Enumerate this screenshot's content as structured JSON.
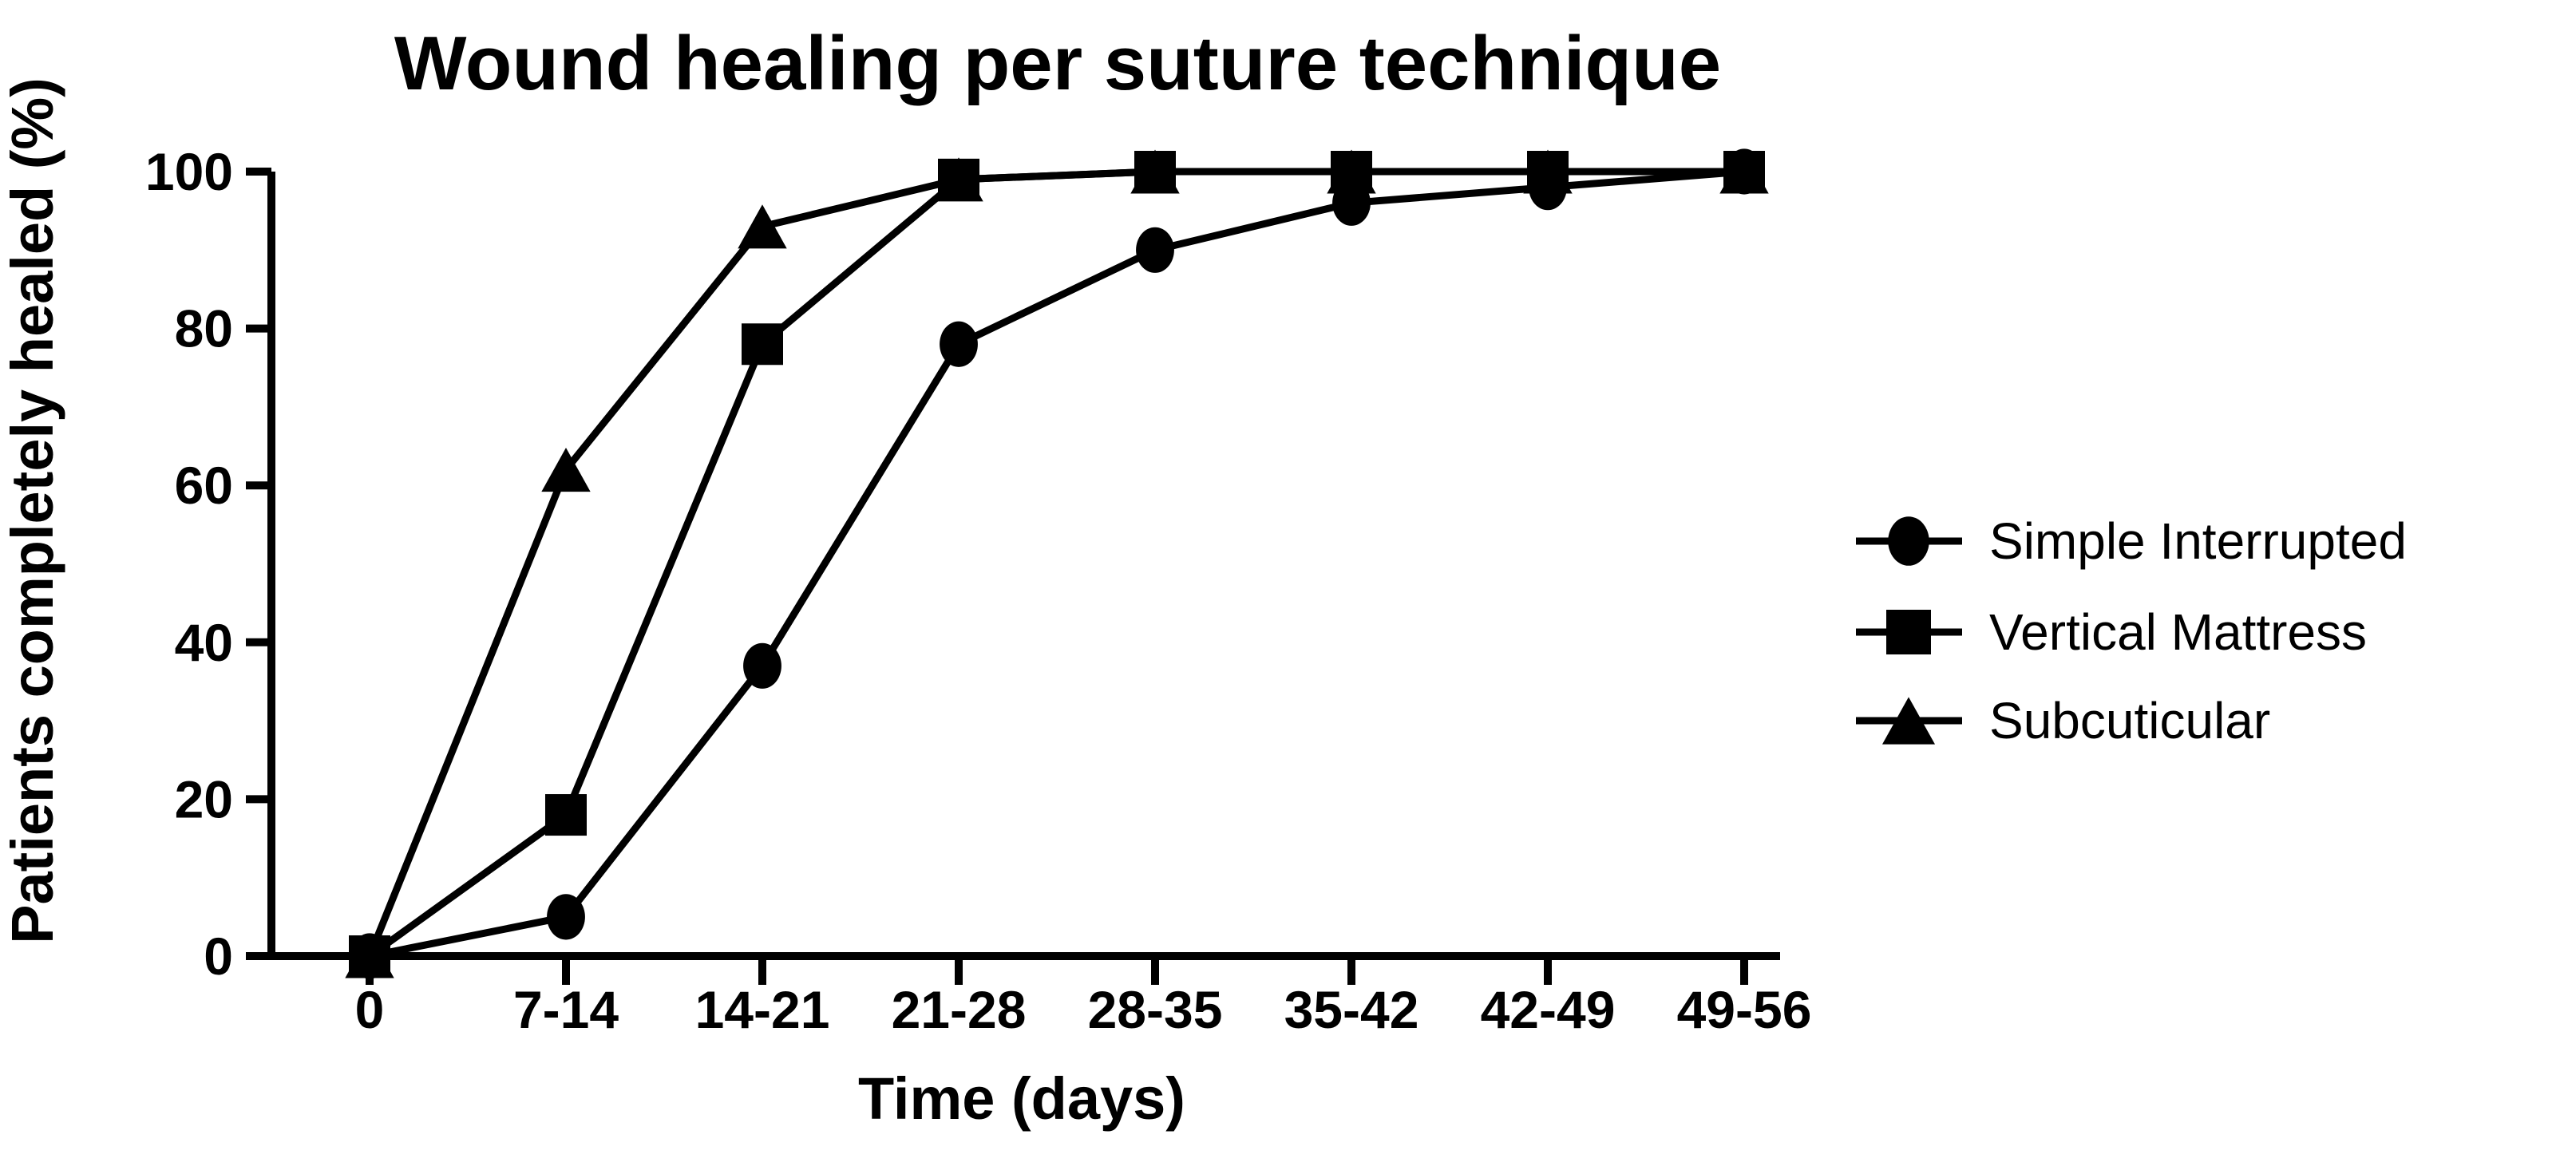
{
  "chart_data": {
    "type": "line",
    "title": "Wound healing per suture technique",
    "xlabel": "Time (days)",
    "ylabel": "Patients completely healed (%)",
    "categories": [
      "0",
      "7-14",
      "14-21",
      "21-28",
      "28-35",
      "35-42",
      "42-49",
      "49-56"
    ],
    "series": [
      {
        "name": "Simple Interrupted",
        "marker": "circle-icon",
        "values": [
          0,
          5,
          37,
          78,
          90,
          96,
          98,
          100
        ]
      },
      {
        "name": "Vertical Mattress",
        "marker": "square-icon",
        "values": [
          0,
          18,
          78,
          99,
          100,
          100,
          100,
          100
        ]
      },
      {
        "name": "Subcuticular",
        "marker": "triangle-icon",
        "values": [
          0,
          62,
          93,
          99,
          100,
          100,
          100,
          100
        ]
      }
    ],
    "ylim": [
      0,
      100
    ],
    "yticks": [
      0,
      20,
      40,
      60,
      80,
      100
    ],
    "grid": "off",
    "legend_position": "right",
    "line_color": "#000000",
    "background_color": "#ffffff"
  }
}
